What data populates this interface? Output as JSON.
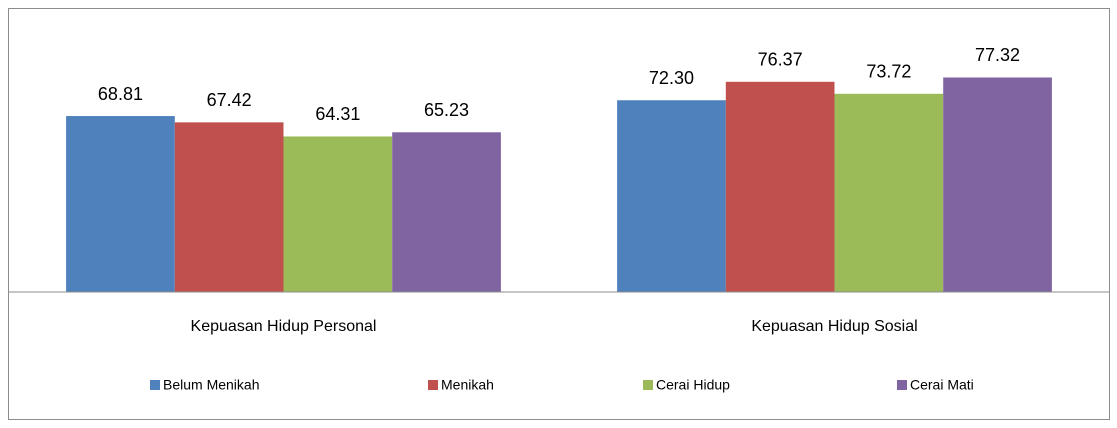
{
  "chart_data": {
    "type": "bar",
    "categories": [
      "Kepuasan Hidup Personal",
      "Kepuasan Hidup Sosial"
    ],
    "series": [
      {
        "name": "Belum Menikah",
        "color": "#4f81bd",
        "values": [
          68.81,
          72.3
        ],
        "value_labels": [
          "68.81",
          "72.30"
        ]
      },
      {
        "name": "Menikah",
        "color": "#c0504d",
        "values": [
          67.42,
          76.37
        ],
        "value_labels": [
          "67.42",
          "76.37"
        ]
      },
      {
        "name": "Cerai Hidup",
        "color": "#9bbb59",
        "values": [
          64.31,
          73.72
        ],
        "value_labels": [
          "64.31",
          "73.72"
        ]
      },
      {
        "name": "Cerai Mati",
        "color": "#8064a2",
        "values": [
          65.23,
          77.32
        ],
        "value_labels": [
          "65.23",
          "77.32"
        ]
      }
    ],
    "ylim": [
      30,
      90
    ],
    "legend": "bottom"
  }
}
